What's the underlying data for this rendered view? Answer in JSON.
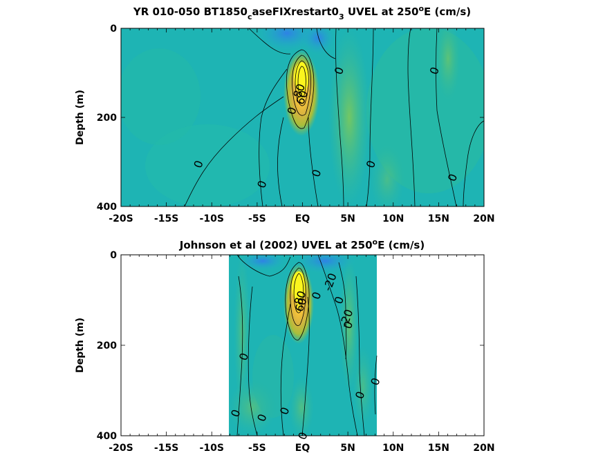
{
  "chart_data": [
    {
      "type": "heatmap",
      "title_parts": [
        "YR 010-050 BT1850",
        "c",
        "aseFIXrestart0",
        "3",
        " UVEL at 250",
        "o",
        "E (cm/s)"
      ],
      "ylabel": "Depth (m)",
      "xlim": [
        -20,
        20
      ],
      "ylim": [
        0,
        400
      ],
      "x_ticks": [
        "-20S",
        "-15S",
        "-10S",
        "-5S",
        "EQ",
        "5N",
        "10N",
        "15N",
        "20N"
      ],
      "x_tick_values": [
        -20,
        -15,
        -10,
        -5,
        0,
        5,
        10,
        15,
        20
      ],
      "y_ticks": [
        "0",
        "200",
        "400"
      ],
      "y_tick_values": [
        0,
        200,
        400
      ],
      "data_extent_x": [
        -20,
        20
      ],
      "core": {
        "lat": 0,
        "depth": 110,
        "max_speed": 100
      },
      "contour_labels": [
        {
          "text": "0",
          "lat": -11.5,
          "depth": 305
        },
        {
          "text": "0",
          "lat": -4.5,
          "depth": 350
        },
        {
          "text": "0",
          "lat": -1.2,
          "depth": 185
        },
        {
          "text": "0",
          "lat": 1.5,
          "depth": 325
        },
        {
          "text": "0",
          "lat": 4,
          "depth": 95
        },
        {
          "text": "0",
          "lat": 7.5,
          "depth": 305
        },
        {
          "text": "0",
          "lat": 14.5,
          "depth": 95
        },
        {
          "text": "0",
          "lat": 16.5,
          "depth": 335
        },
        {
          "text": "80",
          "lat": -0.4,
          "depth": 140
        },
        {
          "text": "60",
          "lat": -0.1,
          "depth": 155
        }
      ]
    },
    {
      "type": "heatmap",
      "title_parts": [
        "Johnson et al (2002) UVEL at 250",
        "o",
        "E (cm/s)"
      ],
      "ylabel": "Depth (m)",
      "xlim": [
        -20,
        20
      ],
      "ylim": [
        0,
        400
      ],
      "x_ticks": [
        "-20S",
        "-15S",
        "-10S",
        "-5S",
        "EQ",
        "5N",
        "10N",
        "15N",
        "20N"
      ],
      "x_tick_values": [
        -20,
        -15,
        -10,
        -5,
        0,
        5,
        10,
        15,
        20
      ],
      "y_ticks": [
        "0",
        "200",
        "400"
      ],
      "y_tick_values": [
        0,
        200,
        400
      ],
      "data_extent_x": [
        -8,
        8.2
      ],
      "core": {
        "lat": 0,
        "depth": 70,
        "max_speed": 100
      },
      "contour_labels": [
        {
          "text": "-20",
          "lat": 3,
          "depth": 60
        },
        {
          "text": "0",
          "lat": 1.5,
          "depth": 90
        },
        {
          "text": "0",
          "lat": 4,
          "depth": 100
        },
        {
          "text": "0",
          "lat": 5,
          "depth": 155
        },
        {
          "text": "-20",
          "lat": 4.8,
          "depth": 140
        },
        {
          "text": "0",
          "lat": -6.5,
          "depth": 225
        },
        {
          "text": "0",
          "lat": 8,
          "depth": 280
        },
        {
          "text": "0",
          "lat": 6.3,
          "depth": 310
        },
        {
          "text": "0",
          "lat": -7.4,
          "depth": 350
        },
        {
          "text": "0",
          "lat": -4.5,
          "depth": 360
        },
        {
          "text": "0",
          "lat": -2,
          "depth": 345
        },
        {
          "text": "0",
          "lat": 0,
          "depth": 400
        },
        {
          "text": "80",
          "lat": -0.3,
          "depth": 95
        },
        {
          "text": "60",
          "lat": -0.2,
          "depth": 110
        }
      ]
    }
  ]
}
